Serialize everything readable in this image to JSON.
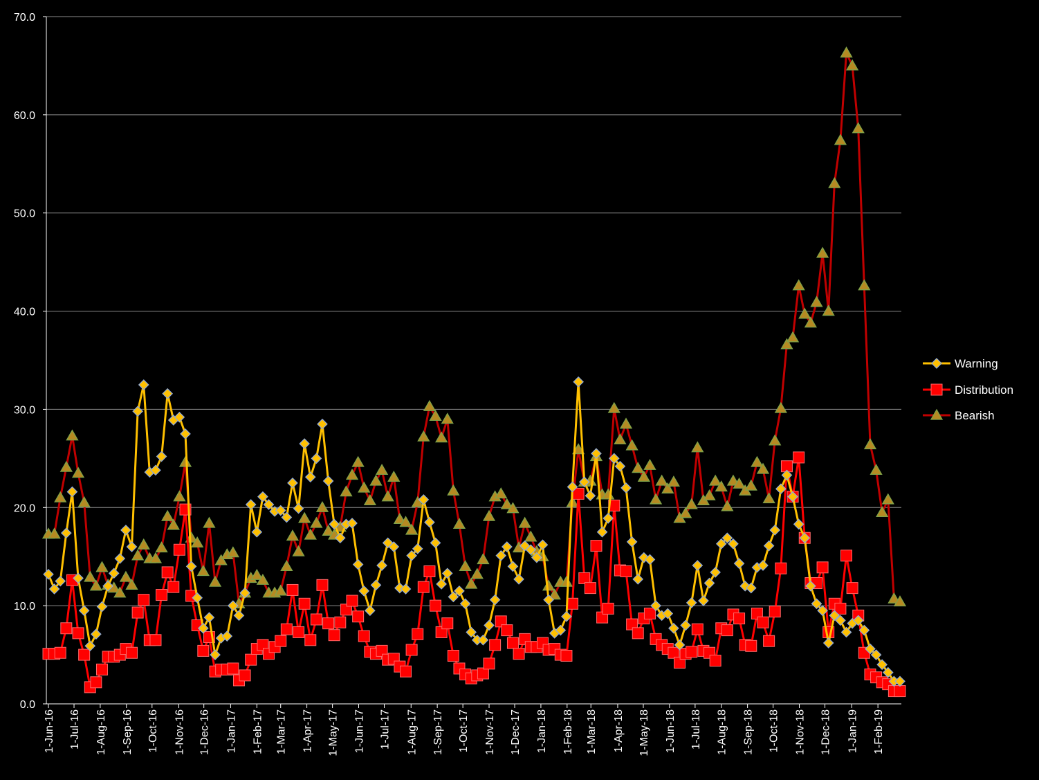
{
  "chart_data": {
    "type": "line",
    "ylim": [
      0,
      70
    ],
    "y_ticks": [
      "0.0",
      "10.0",
      "20.0",
      "30.0",
      "40.0",
      "50.0",
      "60.0",
      "70.0"
    ],
    "x_tick_labels": [
      "1-Jun-16",
      "1-Jul-16",
      "1-Aug-16",
      "1-Sep-16",
      "1-Oct-16",
      "1-Nov-16",
      "1-Dec-16",
      "1-Jan-17",
      "1-Feb-17",
      "1-Mar-17",
      "1-Apr-17",
      "1-May-17",
      "1-Jun-17",
      "1-Jul-17",
      "1-Aug-17",
      "1-Sep-17",
      "1-Oct-17",
      "1-Nov-17",
      "1-Dec-17",
      "1-Jan-18",
      "1-Feb-18",
      "1-Mar-18",
      "1-Apr-18",
      "1-May-18",
      "1-Jun-18",
      "1-Jul-18",
      "1-Aug-18",
      "1-Sep-18",
      "1-Oct-18",
      "1-Nov-18",
      "1-Dec-18",
      "1-Jan-19",
      "1-Feb-19"
    ],
    "x_tick_weeks": [
      0,
      4.3,
      8.7,
      13.1,
      17.4,
      21.9,
      26.1,
      30.6,
      35.0,
      39.0,
      43.4,
      47.7,
      52.1,
      56.4,
      60.9,
      65.3,
      69.6,
      74.0,
      78.3,
      82.7,
      87.1,
      91.1,
      95.6,
      99.9,
      104.3,
      108.6,
      113.0,
      117.4,
      121.7,
      126.1,
      130.4,
      134.9,
      139.3
    ],
    "grid": "horizontal",
    "legend_position": "right",
    "series": [
      {
        "name": "Warning",
        "color": "#FFC000",
        "marker": "diamond",
        "values": [
          13.2,
          11.7,
          12.5,
          17.4,
          21.6,
          12.8,
          9.5,
          5.9,
          7.1,
          9.9,
          12.0,
          13.3,
          14.8,
          17.7,
          16.0,
          29.8,
          32.5,
          23.6,
          23.8,
          25.2,
          31.6,
          28.9,
          29.2,
          27.5,
          14.0,
          10.8,
          7.7,
          8.8,
          5.0,
          6.7,
          6.9,
          10.0,
          9.0,
          11.3,
          20.3,
          17.5,
          21.1,
          20.3,
          19.6,
          19.7,
          19.0,
          22.5,
          19.9,
          26.5,
          23.1,
          25.0,
          28.5,
          22.7,
          18.3,
          16.9,
          18.3,
          18.4,
          14.2,
          11.5,
          9.5,
          12.1,
          14.1,
          16.4,
          16.0,
          11.8,
          11.7,
          15.1,
          15.8,
          20.8,
          18.5,
          16.4,
          12.2,
          13.3,
          10.9,
          11.5,
          10.2,
          7.3,
          6.5,
          6.5,
          8.0,
          10.6,
          15.1,
          16.0,
          14.0,
          12.7,
          16.1,
          15.7,
          14.9,
          16.2,
          10.6,
          7.2,
          7.5,
          8.9,
          22.1,
          32.8,
          22.6,
          21.2,
          25.5,
          17.5,
          18.9,
          25.0,
          24.2,
          22.0,
          16.5,
          12.7,
          14.9,
          14.7,
          10.0,
          9.0,
          9.2,
          7.7,
          6.0,
          8.0,
          10.3,
          14.1,
          10.5,
          12.3,
          13.4,
          16.3,
          16.9,
          16.3,
          14.3,
          12.0,
          11.8,
          13.9,
          14.1,
          16.1,
          17.7,
          21.9,
          23.3,
          21.1,
          18.3,
          16.9,
          12.0,
          10.2,
          9.5,
          6.2,
          9.0,
          8.5,
          7.3,
          8.2,
          8.5,
          7.5,
          5.6,
          5.0,
          4.0,
          3.2,
          2.3,
          2.3
        ]
      },
      {
        "name": "Distribution",
        "color": "#FF0000",
        "marker": "square",
        "values": [
          5.1,
          5.1,
          5.2,
          7.7,
          12.6,
          7.2,
          5.0,
          1.7,
          2.2,
          3.5,
          4.8,
          4.8,
          5.0,
          5.6,
          5.2,
          9.3,
          10.6,
          6.5,
          6.5,
          11.1,
          13.4,
          11.9,
          15.7,
          19.8,
          11.0,
          8.0,
          5.4,
          6.8,
          3.3,
          3.5,
          3.5,
          3.6,
          2.4,
          2.9,
          4.5,
          5.6,
          6.0,
          5.1,
          5.8,
          6.4,
          7.6,
          11.6,
          7.3,
          10.2,
          6.5,
          8.6,
          12.1,
          8.2,
          7.0,
          8.3,
          9.6,
          10.5,
          8.9,
          6.9,
          5.3,
          5.1,
          5.4,
          4.5,
          4.6,
          3.8,
          3.3,
          5.5,
          7.1,
          11.9,
          13.5,
          10.0,
          7.3,
          8.2,
          4.9,
          3.6,
          3.0,
          2.6,
          2.9,
          3.1,
          4.1,
          6.0,
          8.4,
          7.5,
          6.2,
          5.1,
          6.6,
          5.8,
          5.8,
          6.2,
          5.5,
          5.6,
          5.0,
          4.9,
          10.2,
          21.4,
          12.8,
          11.8,
          16.1,
          8.8,
          9.7,
          20.2,
          13.6,
          13.5,
          8.1,
          7.2,
          8.7,
          9.2,
          6.6,
          6.0,
          5.6,
          5.2,
          4.2,
          5.1,
          5.3,
          7.6,
          5.4,
          5.2,
          4.4,
          7.7,
          7.5,
          9.1,
          8.7,
          6.0,
          5.9,
          9.2,
          8.3,
          6.4,
          9.4,
          13.8,
          24.2,
          21.1,
          25.1,
          16.9,
          12.3,
          12.3,
          13.9,
          7.3,
          10.2,
          9.7,
          15.1,
          11.8,
          9.0,
          5.2,
          3.0,
          2.7,
          2.2,
          2.0,
          1.3,
          1.3
        ]
      },
      {
        "name": "Bearish",
        "color": "#C00000",
        "marker": "triangle",
        "values": [
          17.3,
          17.3,
          21.0,
          24.1,
          27.3,
          23.5,
          20.5,
          12.9,
          12.0,
          13.9,
          12.1,
          11.8,
          11.3,
          12.9,
          12.1,
          15.1,
          16.2,
          14.8,
          14.8,
          15.9,
          19.1,
          18.2,
          21.1,
          24.6,
          16.9,
          16.4,
          13.5,
          18.4,
          12.4,
          14.6,
          15.2,
          15.4,
          10.2,
          11.3,
          12.8,
          13.1,
          12.6,
          11.3,
          11.3,
          11.5,
          14.0,
          17.1,
          15.5,
          18.9,
          17.2,
          18.4,
          20.0,
          17.6,
          17.2,
          18.0,
          21.6,
          23.3,
          24.6,
          22.0,
          20.7,
          22.7,
          23.8,
          21.1,
          23.1,
          18.8,
          18.5,
          17.7,
          20.5,
          27.2,
          30.3,
          29.3,
          27.1,
          29.0,
          21.7,
          18.3,
          14.0,
          12.2,
          13.2,
          14.7,
          19.1,
          21.1,
          21.4,
          20.3,
          19.9,
          15.9,
          18.4,
          17.0,
          15.5,
          15.0,
          12.0,
          11.1,
          12.4,
          12.4,
          20.5,
          25.9,
          22.6,
          22.7,
          25.2,
          21.3,
          21.3,
          30.1,
          26.9,
          28.5,
          26.3,
          24.0,
          23.1,
          24.3,
          20.8,
          22.7,
          21.9,
          22.6,
          18.9,
          19.4,
          20.3,
          26.1,
          20.7,
          21.2,
          22.7,
          22.1,
          20.1,
          22.7,
          22.4,
          21.7,
          22.2,
          24.6,
          23.9,
          20.9,
          26.8,
          30.1,
          36.6,
          37.3,
          42.6,
          39.7,
          38.8,
          40.9,
          45.9,
          40.0,
          53.0,
          57.4,
          66.3,
          65.0,
          58.6,
          42.6,
          26.4,
          23.8,
          19.5,
          20.8,
          10.7,
          10.4
        ]
      }
    ]
  }
}
